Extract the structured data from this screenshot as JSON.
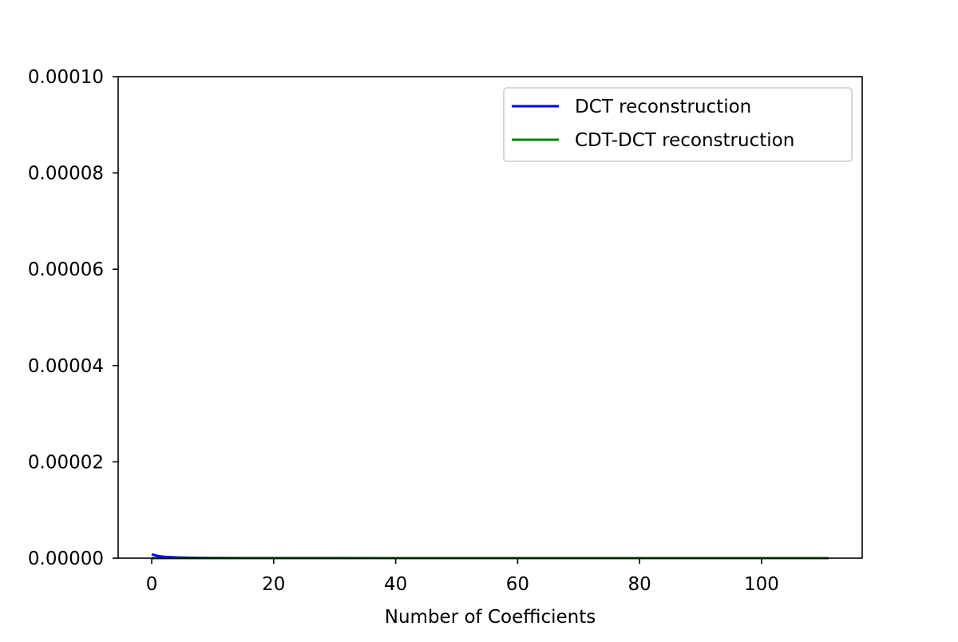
{
  "chart_data": {
    "type": "line",
    "title": "",
    "xlabel": "Number of Coefficients",
    "ylabel": "",
    "xlim": [
      -5.5,
      116.5
    ],
    "ylim": [
      0,
      0.0001
    ],
    "x_ticks": [
      0,
      20,
      40,
      60,
      80,
      100
    ],
    "x_tick_labels": [
      "0",
      "20",
      "40",
      "60",
      "80",
      "100"
    ],
    "y_ticks": [
      0,
      2e-05,
      4e-05,
      6e-05,
      8e-05,
      0.0001
    ],
    "y_tick_labels": [
      "0.00000",
      "0.00002",
      "0.00004",
      "0.00006",
      "0.00008",
      "0.00010"
    ],
    "grid": false,
    "legend_position": "top-right",
    "series": [
      {
        "name": "DCT reconstruction",
        "color": "#0000ff",
        "x": [
          0,
          1,
          2,
          3,
          4,
          5,
          6,
          8,
          10,
          15,
          20,
          30,
          40,
          60,
          80,
          100,
          111
        ],
        "y": [
          8e-07,
          4.5e-07,
          3e-07,
          2.2e-07,
          1.6e-07,
          1.2e-07,
          1e-07,
          7e-08,
          5e-08,
          3e-08,
          2e-08,
          1.2e-08,
          8e-09,
          5e-09,
          3e-09,
          2e-09,
          1e-09
        ]
      },
      {
        "name": "CDT-DCT reconstruction",
        "color": "#008000",
        "x": [
          0,
          10,
          20,
          40,
          60,
          80,
          100,
          111
        ],
        "y": [
          0,
          0,
          0,
          0,
          0,
          0,
          0,
          0
        ]
      }
    ]
  }
}
